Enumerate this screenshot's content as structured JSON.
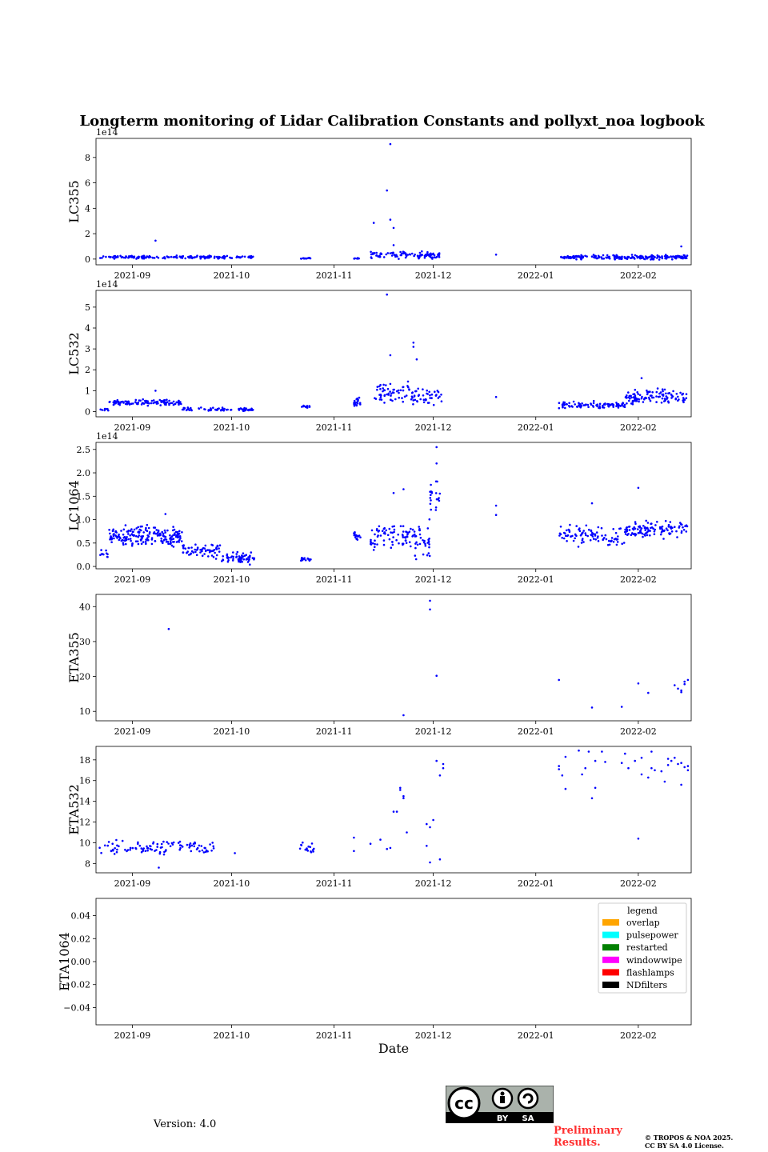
{
  "title": "Longterm monitoring of Lidar Calibration Constants and pollyxt_noa logbook",
  "version_label": "Version: 4.0",
  "preliminary_text": "Preliminary Results.",
  "copyright_line1": "© TROPOS & NOA 2025.",
  "copyright_line2": "CC BY SA 4.0 License.",
  "license_badge": {
    "cc": "cc",
    "by": "BY",
    "sa": "SA"
  },
  "marker_color": "#0000ff",
  "chart_data": [
    {
      "id": "lc355",
      "type": "scatter",
      "ylabel": "LC355",
      "scale_label": "1e14",
      "yticks": [
        0,
        2,
        4,
        6,
        8
      ],
      "ylim": [
        -0.45,
        9.5
      ],
      "series": [
        {
          "name": "LC355",
          "color": "#0000ff",
          "segments": [
            {
              "start": "2021-08-22",
              "end": "2021-10-08",
              "base": 0.15,
              "spread": 0.1,
              "n": 170
            },
            {
              "start": "2021-10-22",
              "end": "2021-10-25",
              "base": 0.06,
              "spread": 0.05,
              "n": 14
            },
            {
              "start": "2021-11-07",
              "end": "2021-11-09",
              "base": 0.05,
              "spread": 0.05,
              "n": 10
            },
            {
              "start": "2021-11-12",
              "end": "2021-11-28",
              "base": 0.35,
              "spread": 0.25,
              "n": 65
            },
            {
              "start": "2021-11-28",
              "end": "2021-12-03",
              "base": 0.3,
              "spread": 0.2,
              "n": 35
            },
            {
              "start": "2022-01-08",
              "end": "2022-02-16",
              "base": 0.15,
              "spread": 0.15,
              "n": 200
            }
          ],
          "points": [
            [
              "2021-09-08",
              1.45
            ],
            [
              "2021-11-13",
              2.85
            ],
            [
              "2021-11-17",
              5.4
            ],
            [
              "2021-11-18",
              9.05
            ],
            [
              "2021-11-18",
              3.1
            ],
            [
              "2021-11-19",
              2.45
            ],
            [
              "2021-11-19",
              1.1
            ],
            [
              "2021-12-20",
              0.35
            ],
            [
              "2022-02-14",
              1.0
            ]
          ]
        }
      ]
    },
    {
      "id": "lc532",
      "type": "scatter",
      "ylabel": "LC532",
      "scale_label": "1e14",
      "yticks": [
        0,
        1,
        2,
        3,
        4,
        5
      ],
      "ylim": [
        -0.25,
        5.8
      ],
      "series": [
        {
          "name": "LC532",
          "color": "#0000ff",
          "segments": [
            {
              "start": "2021-08-22",
              "end": "2021-08-25",
              "base": 0.12,
              "spread": 0.06,
              "n": 8
            },
            {
              "start": "2021-08-25",
              "end": "2021-09-16",
              "base": 0.42,
              "spread": 0.12,
              "n": 110
            },
            {
              "start": "2021-09-16",
              "end": "2021-10-08",
              "base": 0.1,
              "spread": 0.08,
              "n": 75
            },
            {
              "start": "2021-10-22",
              "end": "2021-10-25",
              "base": 0.22,
              "spread": 0.06,
              "n": 14
            },
            {
              "start": "2021-11-07",
              "end": "2021-11-09",
              "base": 0.5,
              "spread": 0.3,
              "n": 18
            },
            {
              "start": "2021-11-13",
              "end": "2021-11-24",
              "base": 0.9,
              "spread": 0.5,
              "n": 55
            },
            {
              "start": "2021-11-24",
              "end": "2021-12-04",
              "base": 0.7,
              "spread": 0.35,
              "n": 45
            },
            {
              "start": "2022-01-08",
              "end": "2022-01-28",
              "base": 0.3,
              "spread": 0.15,
              "n": 90
            },
            {
              "start": "2022-01-28",
              "end": "2022-02-16",
              "base": 0.7,
              "spread": 0.3,
              "n": 110
            }
          ],
          "points": [
            [
              "2021-09-08",
              1.0
            ],
            [
              "2021-11-17",
              5.6
            ],
            [
              "2021-11-18",
              2.7
            ],
            [
              "2021-11-25",
              3.3
            ],
            [
              "2021-11-25",
              3.1
            ],
            [
              "2021-11-26",
              2.5
            ],
            [
              "2021-12-20",
              0.7
            ],
            [
              "2022-02-02",
              1.6
            ]
          ]
        }
      ]
    },
    {
      "id": "lc1064",
      "type": "scatter",
      "ylabel": "LC1064",
      "scale_label": "1e14",
      "yticks": [
        0.0,
        0.5,
        1.0,
        1.5,
        2.0,
        2.5
      ],
      "yticklabels": [
        "0.0",
        "0.5",
        "1.0",
        "1.5",
        "2.0",
        "2.5"
      ],
      "ylim": [
        -0.05,
        2.65
      ],
      "series": [
        {
          "name": "LC1064",
          "color": "#0000ff",
          "segments": [
            {
              "start": "2021-08-22",
              "end": "2021-08-25",
              "base": 0.3,
              "spread": 0.1,
              "n": 10
            },
            {
              "start": "2021-08-25",
              "end": "2021-09-16",
              "base": 0.65,
              "spread": 0.2,
              "n": 200
            },
            {
              "start": "2021-09-16",
              "end": "2021-09-28",
              "base": 0.35,
              "spread": 0.15,
              "n": 60
            },
            {
              "start": "2021-09-28",
              "end": "2021-10-08",
              "base": 0.18,
              "spread": 0.1,
              "n": 60
            },
            {
              "start": "2021-10-22",
              "end": "2021-10-25",
              "base": 0.15,
              "spread": 0.05,
              "n": 14
            },
            {
              "start": "2021-11-07",
              "end": "2021-11-09",
              "base": 0.65,
              "spread": 0.1,
              "n": 15
            },
            {
              "start": "2021-11-12",
              "end": "2021-11-24",
              "base": 0.65,
              "spread": 0.25,
              "n": 70
            },
            {
              "start": "2021-11-24",
              "end": "2021-11-30",
              "base": 0.55,
              "spread": 0.35,
              "n": 40
            },
            {
              "start": "2021-11-30",
              "end": "2021-12-03",
              "base": 1.5,
              "spread": 0.25,
              "n": 20
            },
            {
              "start": "2022-01-08",
              "end": "2022-01-28",
              "base": 0.65,
              "spread": 0.2,
              "n": 90
            },
            {
              "start": "2022-01-28",
              "end": "2022-02-16",
              "base": 0.8,
              "spread": 0.15,
              "n": 110
            }
          ],
          "points": [
            [
              "2021-09-11",
              1.12
            ],
            [
              "2021-11-19",
              1.57
            ],
            [
              "2021-11-22",
              1.65
            ],
            [
              "2021-12-02",
              2.55
            ],
            [
              "2021-12-02",
              2.2
            ],
            [
              "2021-12-20",
              1.3
            ],
            [
              "2021-12-20",
              1.1
            ],
            [
              "2022-01-18",
              1.35
            ],
            [
              "2022-02-01",
              1.68
            ]
          ]
        }
      ]
    },
    {
      "id": "eta355",
      "type": "scatter",
      "ylabel": "ETA355",
      "yticks": [
        10,
        20,
        30,
        40
      ],
      "ylim": [
        7.3,
        43.5
      ],
      "series": [
        {
          "name": "ETA355",
          "color": "#0000ff",
          "points": [
            [
              "2021-09-12",
              33.6
            ],
            [
              "2021-11-22",
              8.9
            ],
            [
              "2021-11-30",
              39.2
            ],
            [
              "2021-11-30",
              41.7
            ],
            [
              "2021-12-02",
              20.2
            ],
            [
              "2022-01-08",
              19.0
            ],
            [
              "2022-01-18",
              11.1
            ],
            [
              "2022-01-27",
              11.3
            ],
            [
              "2022-02-01",
              18.0
            ],
            [
              "2022-02-04",
              15.3
            ],
            [
              "2022-02-12",
              17.5
            ],
            [
              "2022-02-13",
              16.5
            ],
            [
              "2022-02-14",
              15.5
            ],
            [
              "2022-02-15",
              18.5
            ],
            [
              "2022-02-15",
              17.8
            ],
            [
              "2022-02-16",
              19.0
            ],
            [
              "2022-02-14",
              16.0
            ]
          ]
        }
      ]
    },
    {
      "id": "eta532",
      "type": "scatter",
      "ylabel": "ETA532",
      "yticks": [
        8,
        10,
        12,
        14,
        16,
        18
      ],
      "ylim": [
        7.1,
        19.3
      ],
      "series": [
        {
          "name": "ETA532",
          "color": "#0000ff",
          "segments": [
            {
              "start": "2021-08-22",
              "end": "2021-09-26",
              "base": 9.6,
              "spread": 0.6,
              "n": 100
            },
            {
              "start": "2021-10-21",
              "end": "2021-10-26",
              "base": 9.5,
              "spread": 0.5,
              "n": 16
            }
          ],
          "points": [
            [
              "2021-09-09",
              7.6
            ],
            [
              "2021-10-02",
              9.0
            ],
            [
              "2021-11-07",
              10.5
            ],
            [
              "2021-11-07",
              9.2
            ],
            [
              "2021-11-12",
              9.9
            ],
            [
              "2021-11-15",
              10.3
            ],
            [
              "2021-11-17",
              9.4
            ],
            [
              "2021-11-18",
              9.5
            ],
            [
              "2021-11-19",
              13.0
            ],
            [
              "2021-11-20",
              13.0
            ],
            [
              "2021-11-21",
              15.3
            ],
            [
              "2021-11-21",
              15.1
            ],
            [
              "2021-11-22",
              14.5
            ],
            [
              "2021-11-22",
              14.3
            ],
            [
              "2021-11-23",
              11.0
            ],
            [
              "2021-11-29",
              11.8
            ],
            [
              "2021-11-29",
              9.7
            ],
            [
              "2021-11-30",
              8.1
            ],
            [
              "2021-11-30",
              11.5
            ],
            [
              "2021-12-01",
              12.2
            ],
            [
              "2021-12-02",
              17.9
            ],
            [
              "2021-12-03",
              8.4
            ],
            [
              "2021-12-04",
              17.6
            ],
            [
              "2021-12-03",
              16.5
            ],
            [
              "2021-12-04",
              17.2
            ],
            [
              "2022-01-08",
              17.4
            ],
            [
              "2022-01-08",
              17.1
            ],
            [
              "2022-01-09",
              16.5
            ],
            [
              "2022-01-10",
              15.2
            ],
            [
              "2022-01-10",
              18.3
            ],
            [
              "2022-01-14",
              18.9
            ],
            [
              "2022-01-15",
              16.6
            ],
            [
              "2022-01-16",
              17.2
            ],
            [
              "2022-01-17",
              18.8
            ],
            [
              "2022-01-18",
              14.3
            ],
            [
              "2022-01-19",
              15.3
            ],
            [
              "2022-01-19",
              17.9
            ],
            [
              "2022-01-21",
              18.8
            ],
            [
              "2022-01-22",
              17.8
            ],
            [
              "2022-01-27",
              17.7
            ],
            [
              "2022-01-28",
              18.6
            ],
            [
              "2022-01-29",
              17.2
            ],
            [
              "2022-01-31",
              17.9
            ],
            [
              "2022-02-01",
              10.4
            ],
            [
              "2022-02-02",
              16.6
            ],
            [
              "2022-02-02",
              18.2
            ],
            [
              "2022-02-04",
              16.3
            ],
            [
              "2022-02-05",
              17.2
            ],
            [
              "2022-02-05",
              18.8
            ],
            [
              "2022-02-06",
              17.0
            ],
            [
              "2022-02-08",
              16.9
            ],
            [
              "2022-02-09",
              15.9
            ],
            [
              "2022-02-10",
              18.1
            ],
            [
              "2022-02-10",
              17.5
            ],
            [
              "2022-02-11",
              17.9
            ],
            [
              "2022-02-12",
              18.2
            ],
            [
              "2022-02-13",
              17.6
            ],
            [
              "2022-02-14",
              15.6
            ],
            [
              "2022-02-14",
              17.7
            ],
            [
              "2022-02-15",
              17.3
            ],
            [
              "2022-02-16",
              17.0
            ],
            [
              "2022-02-16",
              17.4
            ]
          ]
        }
      ]
    },
    {
      "id": "eta1064",
      "type": "scatter",
      "ylabel": "ETA1064",
      "yticks": [
        -0.04,
        -0.02,
        0.0,
        0.02,
        0.04
      ],
      "yticklabels": [
        "−0.04",
        "−0.02",
        "0.00",
        "0.02",
        "0.04"
      ],
      "ylim": [
        -0.055,
        0.055
      ],
      "xlabel": "Date",
      "series": [],
      "legend": {
        "title": "legend",
        "position": "upper-right",
        "entries": [
          {
            "label": "overlap",
            "color": "#ffa500"
          },
          {
            "label": "pulsepower",
            "color": "#00ffff"
          },
          {
            "label": "restarted",
            "color": "#008000"
          },
          {
            "label": "windowwipe",
            "color": "#ff00ff"
          },
          {
            "label": "flashlamps",
            "color": "#ff0000"
          },
          {
            "label": "NDfilters",
            "color": "#000000"
          }
        ]
      }
    }
  ],
  "x_axis": {
    "range": [
      "2021-08-21",
      "2022-02-17"
    ],
    "ticks": [
      {
        "date": "2021-09-01",
        "label": "2021-09"
      },
      {
        "date": "2021-10-01",
        "label": "2021-10"
      },
      {
        "date": "2021-11-01",
        "label": "2021-11"
      },
      {
        "date": "2021-12-01",
        "label": "2021-12"
      },
      {
        "date": "2022-01-01",
        "label": "2022-01"
      },
      {
        "date": "2022-02-01",
        "label": "2022-02"
      }
    ]
  }
}
